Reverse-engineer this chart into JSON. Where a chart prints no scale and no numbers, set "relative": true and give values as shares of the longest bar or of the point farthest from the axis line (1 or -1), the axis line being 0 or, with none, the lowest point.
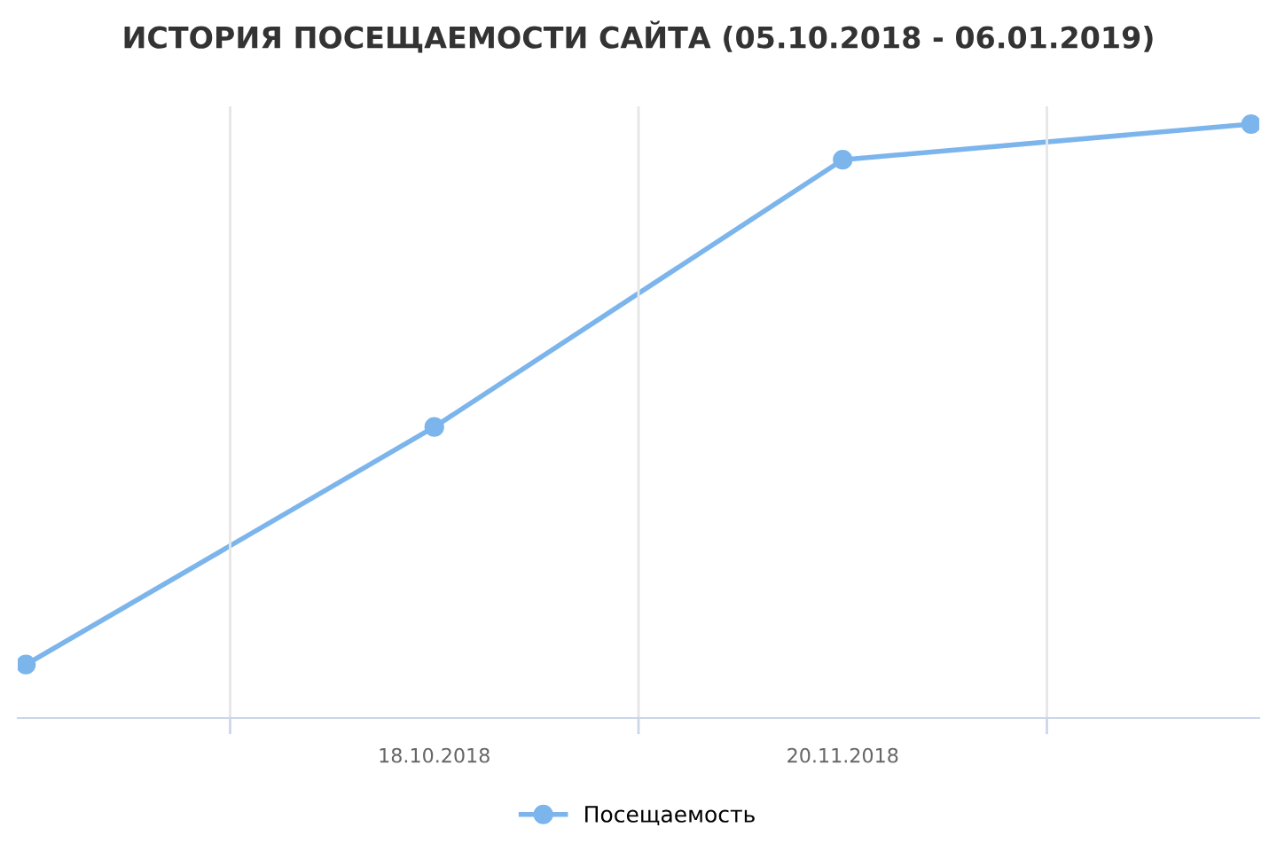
{
  "chart_data": {
    "type": "line",
    "title": "ИСТОРИЯ ПОСЕЩАЕМОСТИ САЙТА (05.10.2018 - 06.01.2019)",
    "categories": [
      null,
      "18.10.2018",
      "20.11.2018",
      null
    ],
    "relative": true,
    "series": [
      {
        "name": "Посещаемость",
        "color": "#7cb5ec",
        "values": [
          0.09,
          0.49,
          0.94,
          1.0
        ]
      }
    ],
    "marker": "circle",
    "legend": "bottom",
    "grid": "x"
  }
}
